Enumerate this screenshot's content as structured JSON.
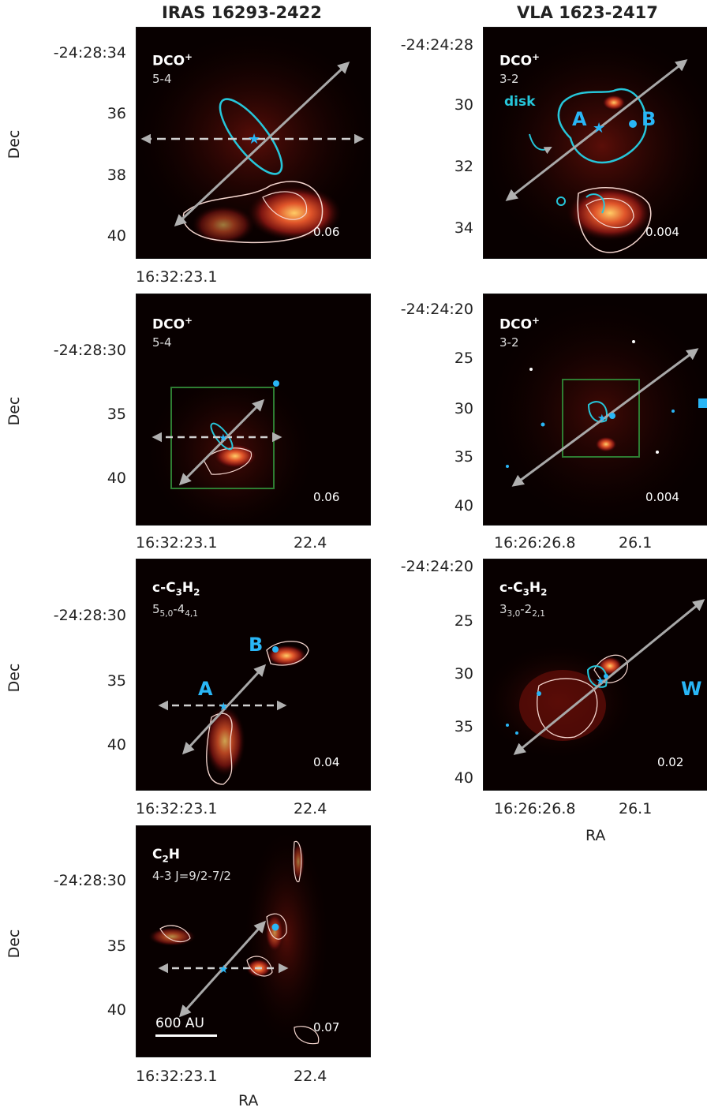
{
  "columns": {
    "left_title": "IRAS 16293-2422",
    "right_title": "VLA 1623-2417"
  },
  "axis": {
    "ylabel": "Dec",
    "xlabel": "RA"
  },
  "panels": {
    "l1": {
      "mol": "DCO",
      "mol_sup": "+",
      "trans": "5-4",
      "value": "0.06",
      "yticks": [
        "-24:28:34",
        "36",
        "38",
        "40"
      ],
      "xtick_left": "16:32:23.1"
    },
    "r1": {
      "mol": "DCO",
      "mol_sup": "+",
      "trans": "3-2",
      "value": "0.004",
      "yticks": [
        "-24:24:28",
        "30",
        "32",
        "34"
      ],
      "label_disk": "disk",
      "label_a": "A",
      "label_b": "B"
    },
    "l2": {
      "mol": "DCO",
      "mol_sup": "+",
      "trans": "5-4",
      "value": "0.06",
      "yticks": [
        "-24:28:30",
        "35",
        "40"
      ],
      "xticks": [
        "16:32:23.1",
        "22.4"
      ]
    },
    "r2": {
      "mol": "DCO",
      "mol_sup": "+",
      "trans": "3-2",
      "value": "0.004",
      "yticks": [
        "-24:24:20",
        "25",
        "30",
        "35",
        "40"
      ],
      "xticks": [
        "16:26:26.8",
        "26.1"
      ]
    },
    "l3": {
      "mol_a": "c-C",
      "mol_sub1": "3",
      "mol_b": "H",
      "mol_sub2": "2",
      "trans_a": "5",
      "trans_sub1": "5,0",
      "trans_b": "-4",
      "trans_sub2": "4,1",
      "value": "0.04",
      "yticks": [
        "-24:28:30",
        "35",
        "40"
      ],
      "xticks": [
        "16:32:23.1",
        "22.4"
      ],
      "label_a": "A",
      "label_b": "B"
    },
    "r3": {
      "mol_a": "c-C",
      "mol_sub1": "3",
      "mol_b": "H",
      "mol_sub2": "2",
      "trans_a": "3",
      "trans_sub1": "3,0",
      "trans_b": "-2",
      "trans_sub2": "2,1",
      "value": "0.02",
      "yticks": [
        "-24:24:20",
        "25",
        "30",
        "35",
        "40"
      ],
      "xticks": [
        "16:26:26.8",
        "26.1"
      ],
      "label_w": "W"
    },
    "l4": {
      "mol_a": "C",
      "mol_sub1": "2",
      "mol_b": "H",
      "trans": "4-3 J=9/2-7/2",
      "value": "0.07",
      "yticks": [
        "-24:28:30",
        "35",
        "40"
      ],
      "xticks": [
        "16:32:23.1",
        "22.4"
      ],
      "scale": "600 AU"
    }
  }
}
